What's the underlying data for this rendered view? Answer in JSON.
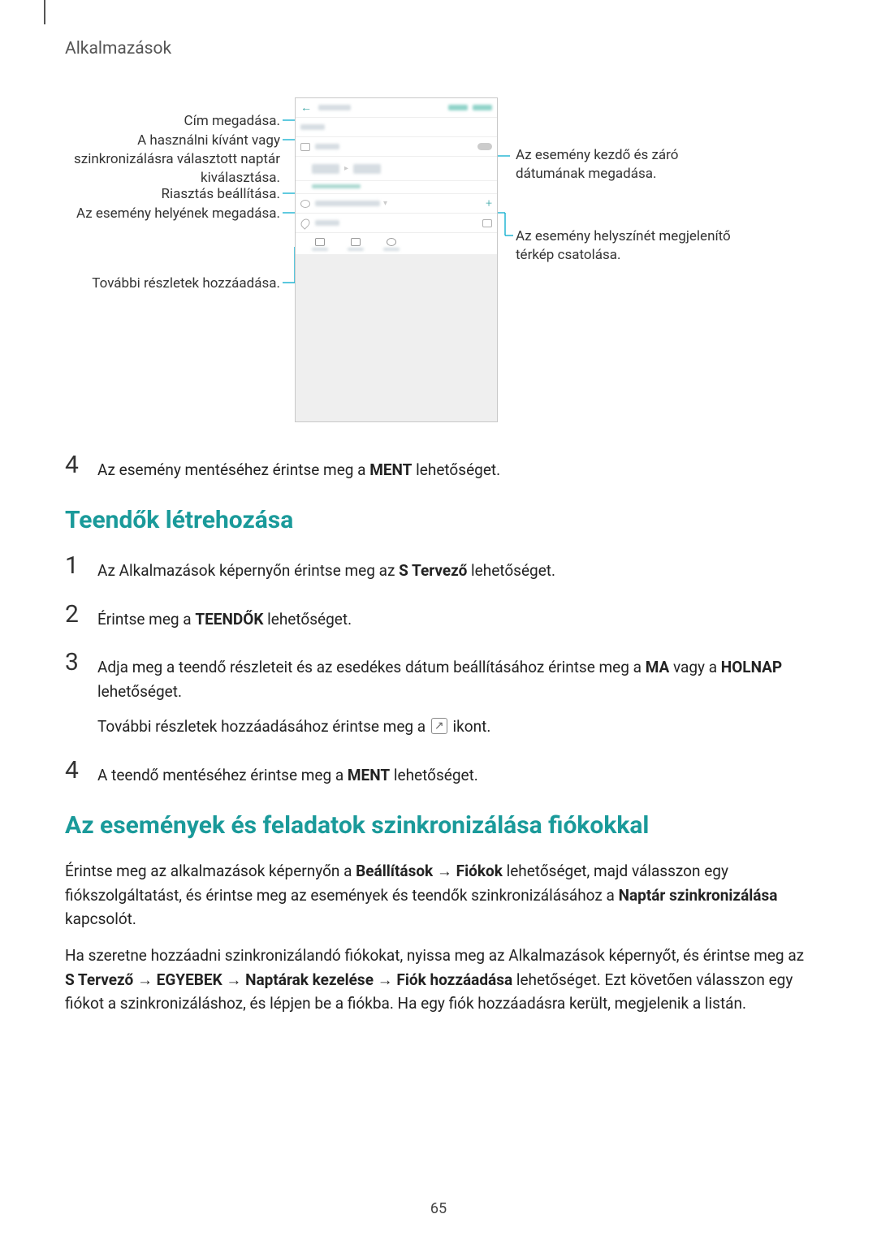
{
  "header": "Alkalmazások",
  "pageNumber": "65",
  "colors": {
    "teal": "#1a9a9a",
    "calloutLine": "#00aacc",
    "bodyText": "#222222",
    "muted": "#555555"
  },
  "callouts": {
    "left": {
      "title": "Cím megadása.",
      "calendar": "A használni kívánt vagy szinkronizálásra választott naptár kiválasztása.",
      "alarm": "Riasztás beállítása.",
      "location": "Az esemény helyének megadása.",
      "more": "További részletek hozzáadása."
    },
    "right": {
      "dates": "Az esemény kezdő és záró dátumának megadása.",
      "map": "Az esemény helyszínét megjelenítő térkép csatolása."
    }
  },
  "section1_step4": {
    "num": "4",
    "prefix": "Az esemény mentéséhez érintse meg a ",
    "bold": "MENT",
    "suffix": " lehetőséget."
  },
  "section2": {
    "heading": "Teendők létrehozása",
    "steps": [
      {
        "num": "1",
        "parts": [
          {
            "t": "Az Alkalmazások képernyőn érintse meg az "
          },
          {
            "t": "S Tervező",
            "b": true
          },
          {
            "t": " lehetőséget."
          }
        ]
      },
      {
        "num": "2",
        "parts": [
          {
            "t": "Érintse meg a "
          },
          {
            "t": "TEENDŐK",
            "b": true
          },
          {
            "t": " lehetőséget."
          }
        ]
      },
      {
        "num": "3",
        "para1": [
          {
            "t": "Adja meg a teendő részleteit és az esedékes dátum beállításához érintse meg a "
          },
          {
            "t": "MA",
            "b": true
          },
          {
            "t": " vagy a "
          },
          {
            "t": "HOLNAP",
            "b": true
          },
          {
            "t": " lehetőséget."
          }
        ],
        "para2_prefix": "További részletek hozzáadásához érintse meg a ",
        "para2_suffix": " ikont."
      },
      {
        "num": "4",
        "parts": [
          {
            "t": "A teendő mentéséhez érintse meg a "
          },
          {
            "t": "MENT",
            "b": true
          },
          {
            "t": " lehetőséget."
          }
        ]
      }
    ]
  },
  "section3": {
    "heading": "Az események és feladatok szinkronizálása fiókokkal",
    "para1": [
      {
        "t": "Érintse meg az alkalmazások képernyőn a "
      },
      {
        "t": "Beállítások",
        "b": true
      },
      {
        "t": " → "
      },
      {
        "t": "Fiókok",
        "b": true
      },
      {
        "t": " lehetőséget, majd válasszon egy fiókszolgáltatást, és érintse meg az események és teendők szinkronizálásához a "
      },
      {
        "t": "Naptár szinkronizálása",
        "b": true
      },
      {
        "t": " kapcsolót."
      }
    ],
    "para2": [
      {
        "t": "Ha szeretne hozzáadni szinkronizálandó fiókokat, nyissa meg az Alkalmazások képernyőt, és érintse meg az "
      },
      {
        "t": "S Tervező",
        "b": true
      },
      {
        "t": " → "
      },
      {
        "t": "EGYEBEK",
        "b": true
      },
      {
        "t": " → "
      },
      {
        "t": "Naptárak kezelése",
        "b": true
      },
      {
        "t": " → "
      },
      {
        "t": "Fiók hozzáadása",
        "b": true
      },
      {
        "t": " lehetőséget. Ezt követően válasszon egy fiókot a szinkronizáláshoz, és lépjen be a fiókba. Ha egy fiók hozzáadásra került, megjelenik a listán."
      }
    ]
  }
}
